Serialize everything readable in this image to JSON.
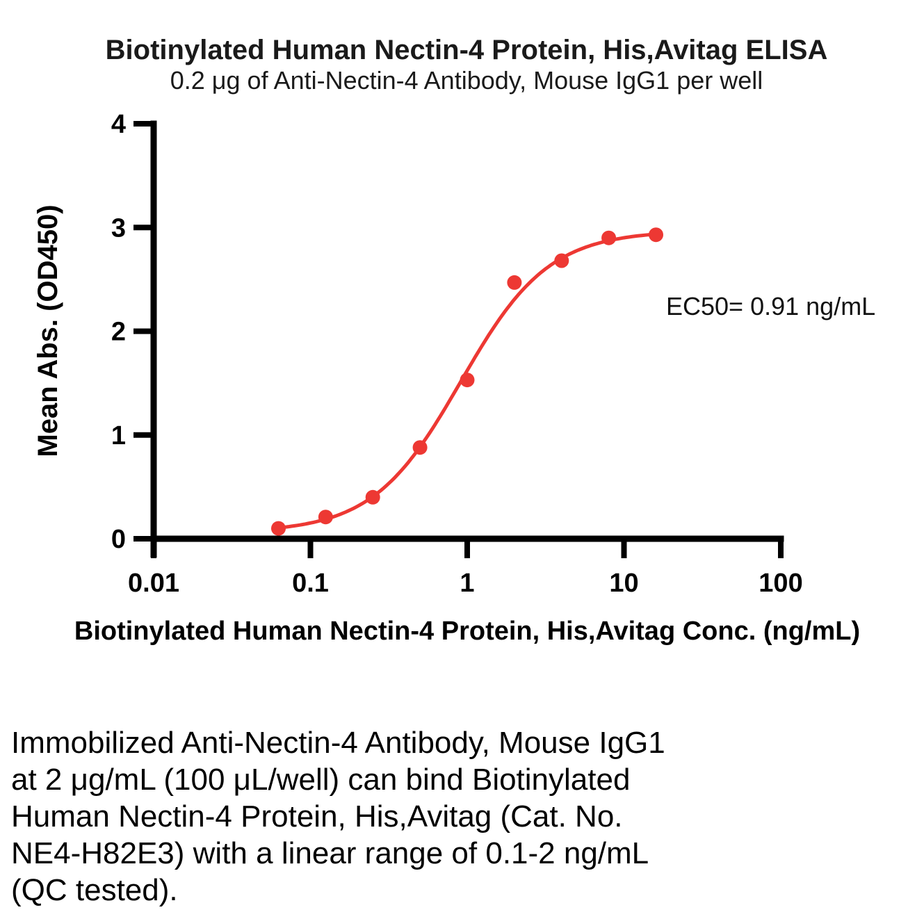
{
  "chart_data": {
    "type": "scatter",
    "title": "Biotinylated Human Nectin-4 Protein, His,Avitag ELISA",
    "subtitle": "0.2 μg of Anti-Nectin-4 Antibody, Mouse IgG1 per well",
    "xlabel": "Biotinylated Human Nectin-4 Protein, His,Avitag Conc. (ng/mL)",
    "ylabel": "Mean Abs. (OD450)",
    "x_scale": "log10",
    "xlim": [
      0.01,
      100
    ],
    "ylim": [
      0,
      4
    ],
    "x_ticks": [
      0.01,
      0.1,
      1,
      10,
      100
    ],
    "x_tick_labels": [
      "0.01",
      "0.1",
      "1",
      "10",
      "100"
    ],
    "y_ticks": [
      0,
      1,
      2,
      3,
      4
    ],
    "y_tick_labels": [
      "0",
      "1",
      "2",
      "3",
      "4"
    ],
    "grid": false,
    "legend": "none",
    "series": [
      {
        "name": "Biotinylated Human Nectin-4 Protein, His,Avitag",
        "color": "#ED3833",
        "x": [
          0.0625,
          0.125,
          0.25,
          0.5,
          1,
          2,
          4,
          8,
          16
        ],
        "y": [
          0.1,
          0.21,
          0.4,
          0.88,
          1.53,
          2.47,
          2.68,
          2.9,
          2.93
        ]
      }
    ],
    "fit": {
      "model": "4PL sigmoidal dose-response",
      "ec50_value": 0.91,
      "annotation": "EC50= 0.91 ng/mL"
    }
  },
  "description": {
    "lines": {
      "0": "Immobilized Anti-Nectin-4 Antibody, Mouse IgG1",
      "1": "at 2 μg/mL (100 μL/well) can bind Biotinylated",
      "2": "Human Nectin-4 Protein, His,Avitag (Cat. No.",
      "3": "NE4-H82E3) with a linear range of 0.1-2 ng/mL",
      "4": "(QC tested)."
    }
  }
}
